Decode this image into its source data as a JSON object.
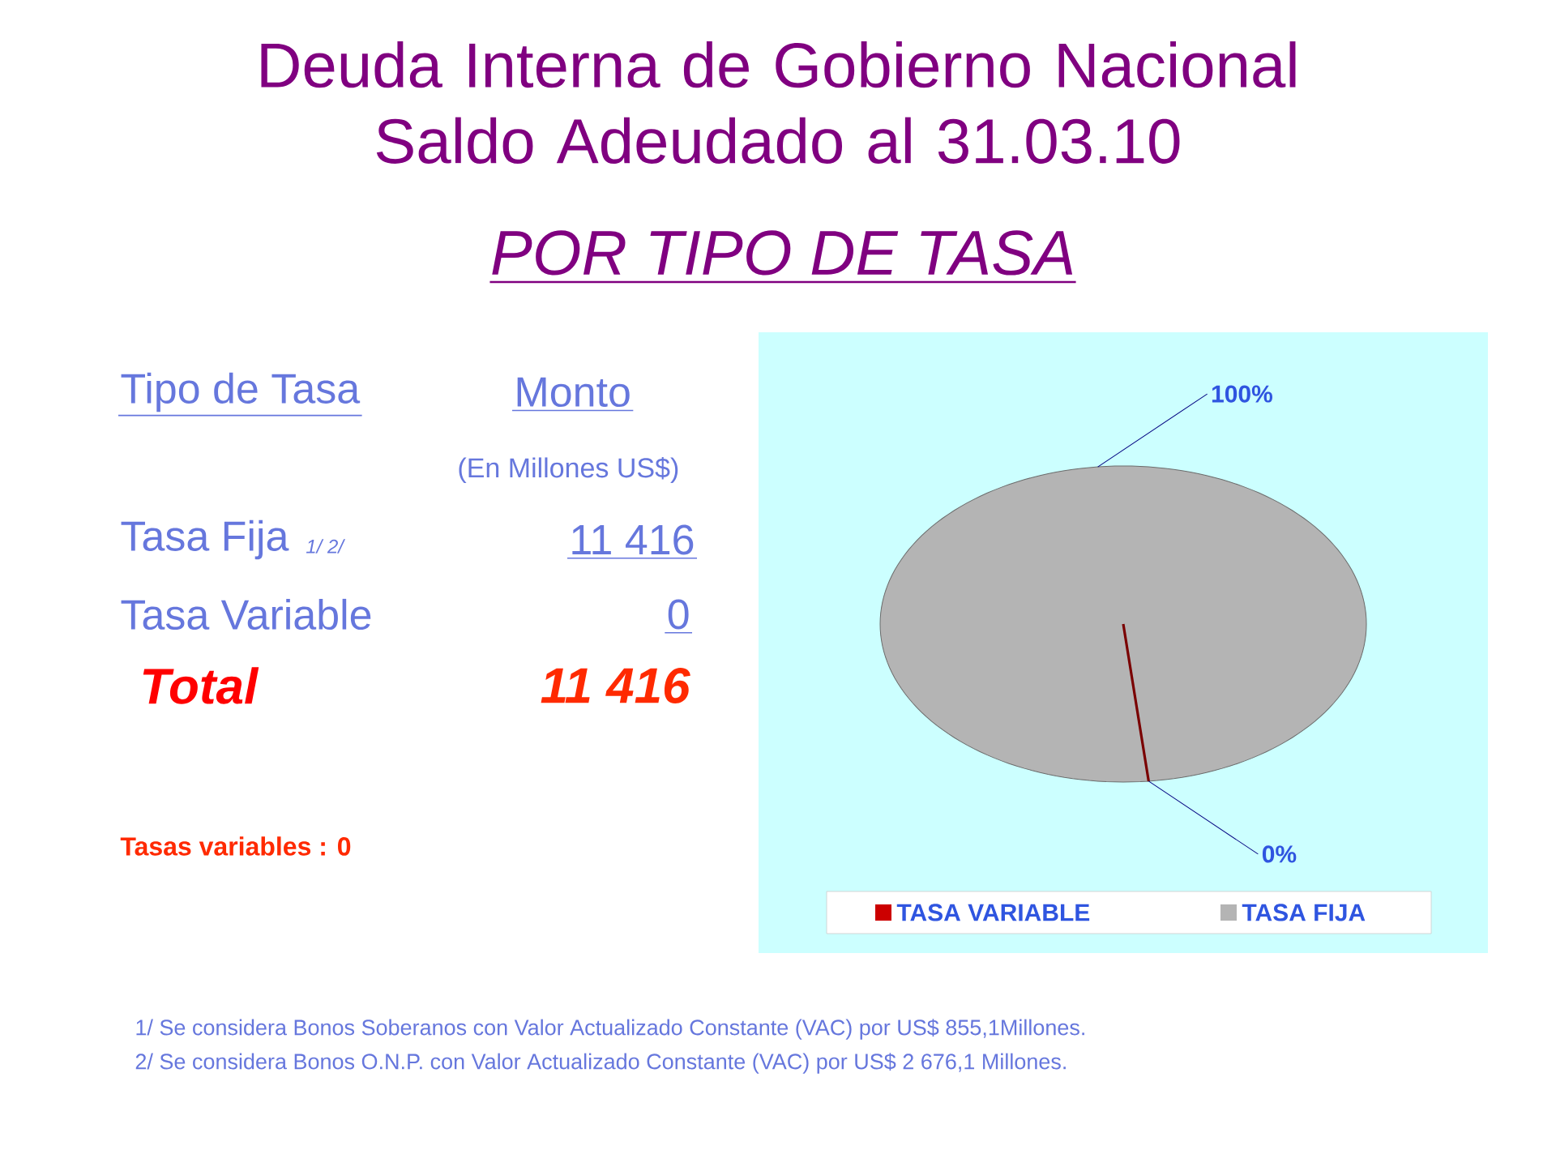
{
  "chart_data": {
    "type": "pie",
    "title": "Deuda Interna de Gobierno Nacional Saldo Adeudado al 31.03.10",
    "subtitle": "POR TIPO DE TASA",
    "categories": [
      "TASA VARIABLE",
      "TASA FIJA"
    ],
    "values": [
      0,
      100
    ],
    "value_labels": [
      "0%",
      "100%"
    ],
    "colors": [
      "#cc0000",
      "#b4b4b4"
    ],
    "legend": "bottom",
    "annotations": [
      "Tipo de Tasa",
      "Monto",
      "(En Millones US$)",
      "Tasa Fija",
      "1/ 2/",
      "11 416",
      "Tasa Variable",
      "0",
      "Total",
      "11 416",
      "Tasas variables :  0",
      "1/   Se  considera  Bonos  Soberanos con Valor Actualizado Constante (VAC) por US$  855,1Millones.",
      "2/   Se considera Bonos O.N.P. con Valor Actualizado Constante (VAC) por US$ 2 676,1 Millones."
    ]
  }
}
